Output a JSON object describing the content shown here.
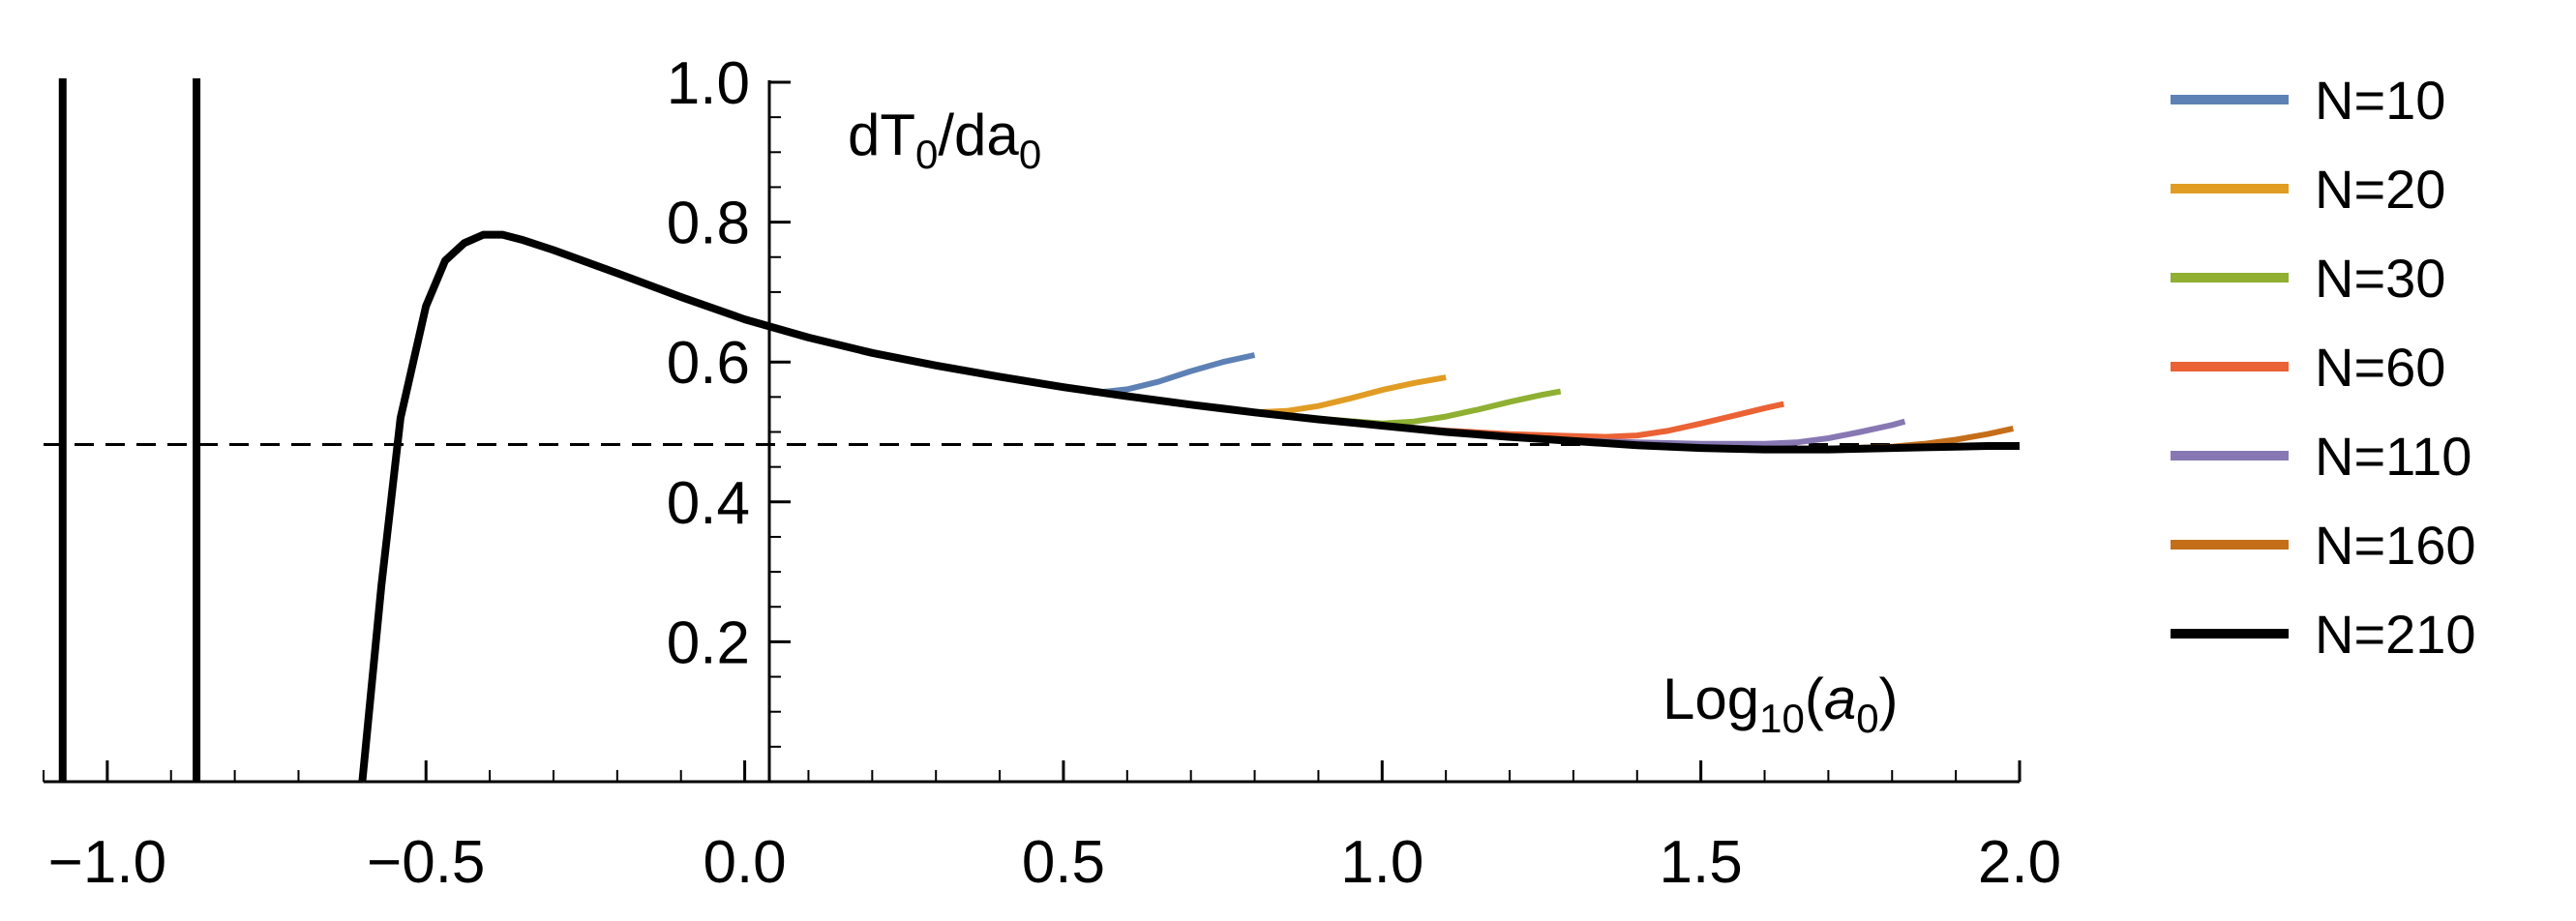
{
  "chart_data": {
    "type": "line",
    "title": "",
    "xlabel": "Log10(a0)",
    "ylabel": "dT0/da0",
    "xlim": [
      -1.1,
      2.0
    ],
    "ylim": [
      0.0,
      1.0
    ],
    "x_ticks": [
      {
        "value": -1.0,
        "label": "−1.0"
      },
      {
        "value": -0.5,
        "label": "−0.5"
      },
      {
        "value": 0.0,
        "label": "0.0"
      },
      {
        "value": 0.5,
        "label": "0.5"
      },
      {
        "value": 1.0,
        "label": "1.0"
      },
      {
        "value": 1.5,
        "label": "1.5"
      },
      {
        "value": 2.0,
        "label": "2.0"
      }
    ],
    "y_ticks": [
      {
        "value": 0.2,
        "label": "0.2"
      },
      {
        "value": 0.4,
        "label": "0.4"
      },
      {
        "value": 0.6,
        "label": "0.6"
      },
      {
        "value": 0.8,
        "label": "0.8"
      },
      {
        "value": 1.0,
        "label": "1.0"
      }
    ],
    "reference_line": {
      "orientation": "horizontal",
      "y": 0.482,
      "style": "dashed"
    },
    "legend": {
      "placement": "right"
    },
    "vertical_segments": [
      {
        "x": -1.07,
        "series": "N=210"
      },
      {
        "x": -0.86,
        "series": "N=210"
      }
    ],
    "common_curve": {
      "x": [
        -0.6,
        -0.57,
        -0.54,
        -0.5,
        -0.47,
        -0.44,
        -0.41,
        -0.38,
        -0.35,
        -0.3,
        -0.2,
        -0.1,
        0.0,
        0.1,
        0.2,
        0.3,
        0.4,
        0.5,
        0.6,
        0.7,
        0.8
      ],
      "y": [
        0.0,
        0.28,
        0.52,
        0.68,
        0.745,
        0.77,
        0.782,
        0.782,
        0.775,
        0.76,
        0.727,
        0.693,
        0.661,
        0.635,
        0.613,
        0.595,
        0.579,
        0.564,
        0.551,
        0.539,
        0.528
      ]
    },
    "series": [
      {
        "name": "N=10",
        "color": "#5E81B5",
        "tail_x": [
          0.55,
          0.6,
          0.65,
          0.7,
          0.75,
          0.8
        ],
        "tail_y": [
          0.556,
          0.561,
          0.572,
          0.587,
          0.6,
          0.61
        ]
      },
      {
        "name": "N=20",
        "color": "#E19C24",
        "tail_x": [
          0.8,
          0.85,
          0.9,
          0.95,
          1.0,
          1.05,
          1.1
        ],
        "tail_y": [
          0.528,
          0.53,
          0.537,
          0.548,
          0.56,
          0.57,
          0.578
        ]
      },
      {
        "name": "N=30",
        "color": "#8FB032",
        "tail_x": [
          0.8,
          0.9,
          1.0,
          1.05,
          1.1,
          1.15,
          1.2,
          1.25,
          1.28
        ],
        "tail_y": [
          0.528,
          0.519,
          0.512,
          0.515,
          0.522,
          0.532,
          0.543,
          0.553,
          0.558
        ]
      },
      {
        "name": "N=60",
        "color": "#EB6235",
        "tail_x": [
          0.8,
          0.9,
          1.0,
          1.1,
          1.2,
          1.3,
          1.35,
          1.4,
          1.45,
          1.5,
          1.55,
          1.6,
          1.63
        ],
        "tail_y": [
          0.528,
          0.518,
          0.509,
          0.502,
          0.497,
          0.494,
          0.493,
          0.495,
          0.502,
          0.512,
          0.523,
          0.534,
          0.54
        ]
      },
      {
        "name": "N=110",
        "color": "#8778B3",
        "tail_x": [
          0.8,
          0.9,
          1.0,
          1.1,
          1.2,
          1.3,
          1.4,
          1.5,
          1.6,
          1.65,
          1.7,
          1.75,
          1.8,
          1.82
        ],
        "tail_y": [
          0.528,
          0.518,
          0.509,
          0.5,
          0.493,
          0.488,
          0.485,
          0.483,
          0.483,
          0.485,
          0.491,
          0.5,
          0.51,
          0.515
        ]
      },
      {
        "name": "N=160",
        "color": "#C56E1A",
        "tail_x": [
          0.8,
          0.9,
          1.0,
          1.1,
          1.2,
          1.3,
          1.4,
          1.5,
          1.6,
          1.7,
          1.8,
          1.85,
          1.9,
          1.95,
          1.99
        ],
        "tail_y": [
          0.528,
          0.518,
          0.509,
          0.5,
          0.493,
          0.487,
          0.482,
          0.478,
          0.476,
          0.476,
          0.479,
          0.483,
          0.489,
          0.497,
          0.505
        ]
      },
      {
        "name": "N=210",
        "color": "#000000",
        "tail_x": [
          0.8,
          0.9,
          1.0,
          1.1,
          1.2,
          1.3,
          1.4,
          1.5,
          1.6,
          1.7,
          1.8,
          1.85,
          1.9,
          1.95,
          2.0
        ],
        "tail_y": [
          0.528,
          0.518,
          0.509,
          0.5,
          0.493,
          0.487,
          0.481,
          0.477,
          0.475,
          0.475,
          0.477,
          0.478,
          0.479,
          0.48,
          0.48
        ]
      }
    ]
  }
}
